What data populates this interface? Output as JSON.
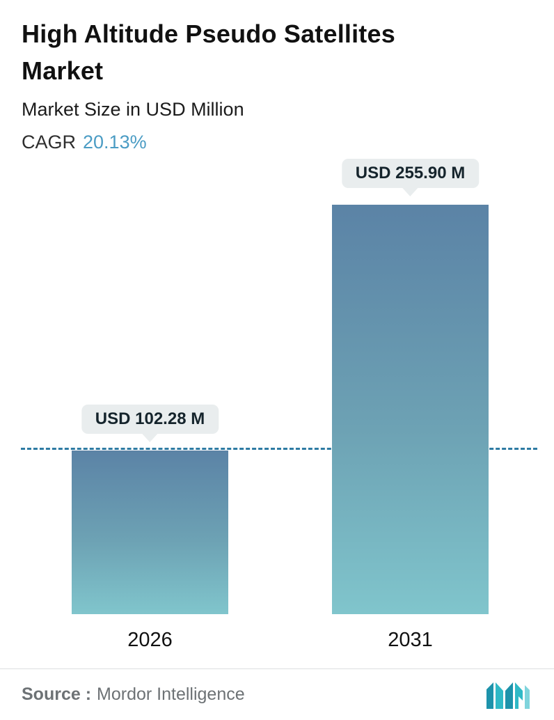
{
  "header": {
    "title": "High Altitude Pseudo Satellites Market",
    "subtitle": "Market Size in USD Million",
    "cagr_label": "CAGR",
    "cagr_value": "20.13%"
  },
  "chart_data": {
    "type": "bar",
    "title": "High Altitude Pseudo Satellites Market",
    "subtitle": "Market Size in USD Million",
    "unit": "USD Million",
    "cagr_percent": 20.13,
    "categories": [
      "2026",
      "2031"
    ],
    "values": [
      102.28,
      255.9
    ],
    "value_labels": [
      "USD 102.28 M",
      "USD 255.90 M"
    ],
    "ylim": [
      0,
      255.9
    ],
    "grid": false,
    "legend": "none",
    "guideline_value": 102.28,
    "bar_gradient_top": "#5b83a6",
    "bar_gradient_bottom": "#80c5cc",
    "guideline_color": "#2e7ba3",
    "badge_background": "#e9edee"
  },
  "footer": {
    "source_label": "Source :",
    "source_value": "Mordor Intelligence"
  },
  "colors": {
    "accent_blue": "#4b9cc4",
    "text_dark": "#111111",
    "text_gray": "#6d7275",
    "logo_teal_dark": "#1d93ab",
    "logo_teal_light": "#2fb9c6"
  }
}
